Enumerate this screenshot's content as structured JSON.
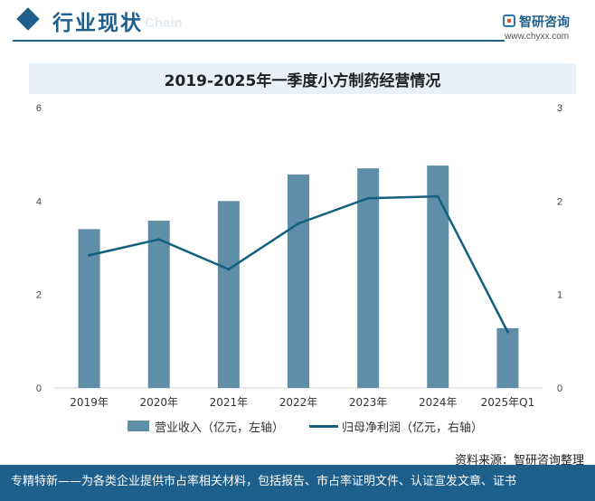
{
  "header": {
    "section_title": "行业现状",
    "section_sub": "Chain",
    "logo_name": "智研咨询",
    "logo_url": "www.chyxx.com"
  },
  "chart_title": "2019-2025年一季度小方制药经营情况",
  "legend": {
    "bar_label": "营业收入（亿元，左轴）",
    "line_label": "归母净利润（亿元，右轴）"
  },
  "source": "资料来源：智研咨询整理",
  "footer": "专精特新——为各类企业提供市占率相关材料，包括报告、市占率证明文件、认证宣发文章、证书",
  "colors": {
    "brand": "#1f5f8b",
    "bar": "#5e8ea8",
    "line": "#15607f"
  },
  "chart_data": {
    "type": "bar",
    "categories": [
      "2019年",
      "2020年",
      "2021年",
      "2022年",
      "2023年",
      "2024年",
      "2025年Q1"
    ],
    "series": [
      {
        "name": "营业收入（亿元，左轴）",
        "type": "bar",
        "axis": "left",
        "values": [
          3.4,
          3.58,
          4.0,
          4.57,
          4.7,
          4.76,
          1.28
        ]
      },
      {
        "name": "归母净利润（亿元，右轴）",
        "type": "line",
        "axis": "right",
        "values": [
          1.42,
          1.59,
          1.27,
          1.76,
          2.03,
          2.05,
          0.6
        ]
      }
    ],
    "y_left": {
      "ylim": [
        0,
        6
      ],
      "ticks": [
        "0",
        "2",
        "4",
        "6"
      ],
      "tick_values": [
        0,
        2,
        4,
        6
      ]
    },
    "y_right": {
      "ylim": [
        0,
        3
      ],
      "ticks": [
        "0",
        "1",
        "2",
        "3"
      ],
      "tick_values": [
        0,
        1,
        2,
        3
      ]
    },
    "grid": false,
    "legend_position": "bottom"
  }
}
